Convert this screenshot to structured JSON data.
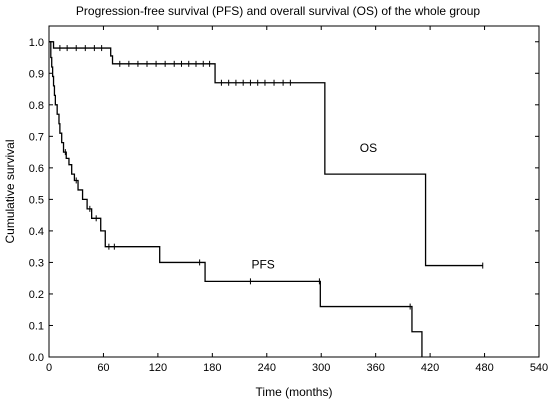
{
  "chart_data": {
    "type": "line",
    "title": "Progression-free survival (PFS) and overall survival (OS) of the whole group",
    "xlabel": "Time (months)",
    "ylabel": "Cumulative survival",
    "xlim": [
      0,
      540
    ],
    "ylim": [
      0,
      1.05
    ],
    "xticks": [
      0,
      60,
      120,
      180,
      240,
      300,
      360,
      420,
      480,
      540
    ],
    "yticks": [
      0.0,
      0.1,
      0.2,
      0.3,
      0.4,
      0.5,
      0.6,
      0.7,
      0.8,
      0.9,
      1.0
    ],
    "xtick_labels": [
      "0",
      "60",
      "120",
      "180",
      "240",
      "300",
      "360",
      "420",
      "480",
      "540"
    ],
    "ytick_labels": [
      "0.0",
      "0.1",
      "0.2",
      "0.3",
      "0.4",
      "0.5",
      "0.6",
      "0.7",
      "0.8",
      "0.9",
      "1.0"
    ],
    "grid": false,
    "series": [
      {
        "name": "OS",
        "label_at": [
          352,
          0.65
        ],
        "steps": [
          [
            0,
            1.0
          ],
          [
            5,
            0.98
          ],
          [
            63,
            0.98
          ],
          [
            68,
            0.955
          ],
          [
            70,
            0.93
          ],
          [
            180,
            0.93
          ],
          [
            183,
            0.87
          ],
          [
            302,
            0.87
          ],
          [
            304,
            0.58
          ],
          [
            413,
            0.58
          ],
          [
            415,
            0.29
          ],
          [
            478,
            0.29
          ]
        ],
        "censored": [
          [
            12,
            0.98
          ],
          [
            20,
            0.98
          ],
          [
            30,
            0.98
          ],
          [
            40,
            0.98
          ],
          [
            50,
            0.98
          ],
          [
            58,
            0.98
          ],
          [
            78,
            0.93
          ],
          [
            88,
            0.93
          ],
          [
            98,
            0.93
          ],
          [
            108,
            0.93
          ],
          [
            118,
            0.93
          ],
          [
            128,
            0.93
          ],
          [
            138,
            0.93
          ],
          [
            146,
            0.93
          ],
          [
            154,
            0.93
          ],
          [
            162,
            0.93
          ],
          [
            170,
            0.93
          ],
          [
            177,
            0.93
          ],
          [
            190,
            0.87
          ],
          [
            198,
            0.87
          ],
          [
            206,
            0.87
          ],
          [
            214,
            0.87
          ],
          [
            222,
            0.87
          ],
          [
            230,
            0.87
          ],
          [
            238,
            0.87
          ],
          [
            248,
            0.87
          ],
          [
            258,
            0.87
          ],
          [
            266,
            0.87
          ],
          [
            478,
            0.29
          ]
        ]
      },
      {
        "name": "PFS",
        "label_at": [
          236,
          0.28
        ],
        "steps": [
          [
            0,
            1.0
          ],
          [
            2,
            0.95
          ],
          [
            3,
            0.92
          ],
          [
            4,
            0.89
          ],
          [
            5,
            0.86
          ],
          [
            6,
            0.83
          ],
          [
            7,
            0.8
          ],
          [
            9,
            0.77
          ],
          [
            11,
            0.74
          ],
          [
            12,
            0.71
          ],
          [
            14,
            0.68
          ],
          [
            16,
            0.65
          ],
          [
            19,
            0.63
          ],
          [
            22,
            0.61
          ],
          [
            25,
            0.58
          ],
          [
            28,
            0.56
          ],
          [
            32,
            0.53
          ],
          [
            37,
            0.5
          ],
          [
            42,
            0.47
          ],
          [
            47,
            0.44
          ],
          [
            57,
            0.4
          ],
          [
            62,
            0.35
          ],
          [
            120,
            0.35
          ],
          [
            122,
            0.3
          ],
          [
            170,
            0.3
          ],
          [
            172,
            0.24
          ],
          [
            297,
            0.24
          ],
          [
            299,
            0.16
          ],
          [
            398,
            0.16
          ],
          [
            400,
            0.08
          ],
          [
            410,
            0.08
          ],
          [
            411,
            0.0
          ]
        ],
        "censored": [
          [
            18,
            0.65
          ],
          [
            30,
            0.56
          ],
          [
            45,
            0.47
          ],
          [
            52,
            0.44
          ],
          [
            66,
            0.35
          ],
          [
            72,
            0.35
          ],
          [
            166,
            0.3
          ],
          [
            222,
            0.24
          ],
          [
            298,
            0.24
          ],
          [
            398,
            0.16
          ]
        ]
      }
    ]
  }
}
